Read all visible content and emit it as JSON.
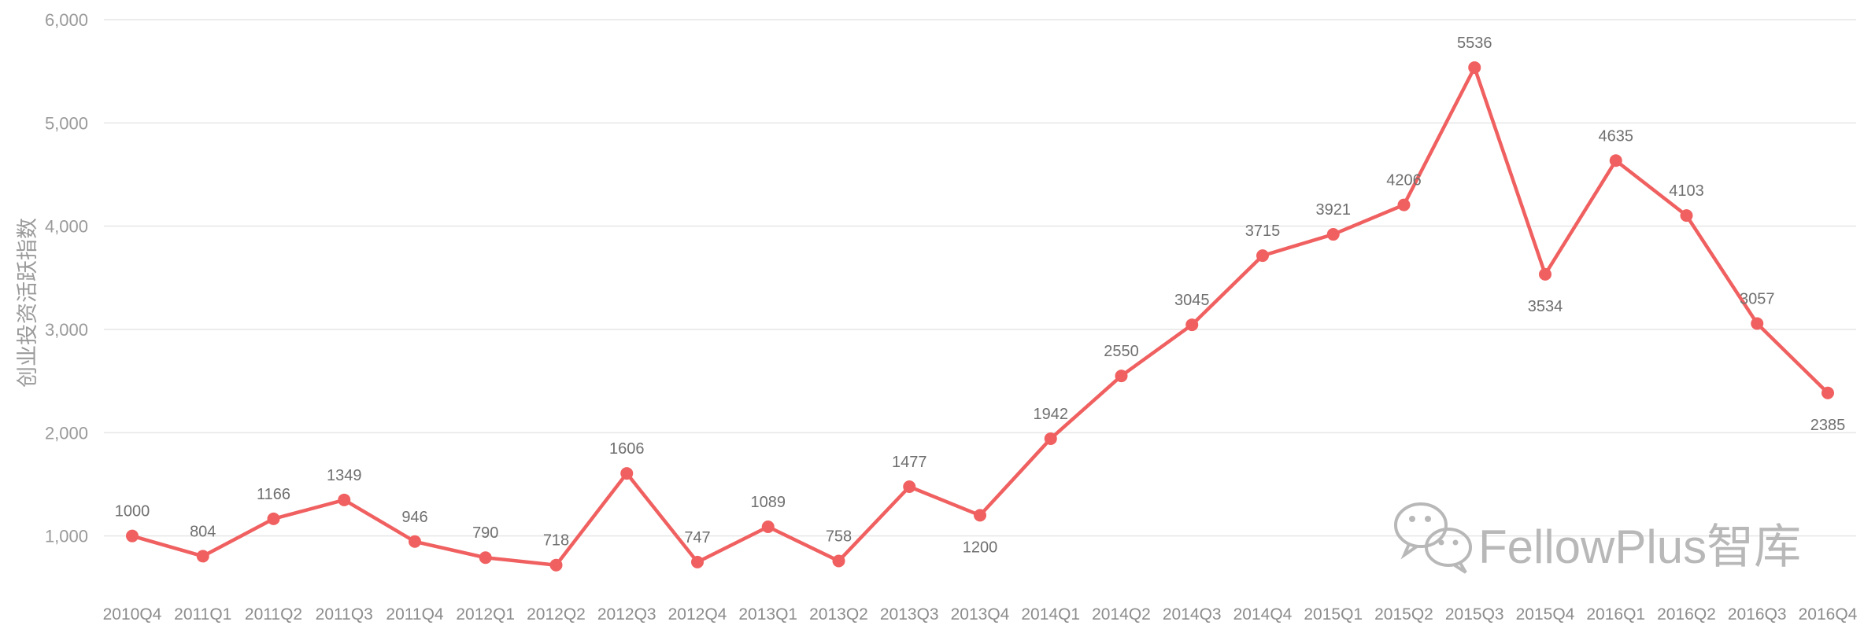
{
  "chart_data": {
    "type": "line",
    "title": "",
    "xlabel": "",
    "ylabel": "创业投资活跃指数",
    "ylim": [
      0,
      6000
    ],
    "yticks": [
      "1,000",
      "2,000",
      "3,000",
      "4,000",
      "5,000",
      "6,000"
    ],
    "grid": true,
    "legend": "none",
    "color": "#f06060",
    "categories": [
      "2010Q4",
      "2011Q1",
      "2011Q2",
      "2011Q3",
      "2011Q4",
      "2012Q1",
      "2012Q2",
      "2012Q3",
      "2012Q4",
      "2013Q1",
      "2013Q2",
      "2013Q3",
      "2013Q4",
      "2014Q1",
      "2014Q2",
      "2014Q3",
      "2014Q4",
      "2015Q1",
      "2015Q2",
      "2015Q3",
      "2015Q4",
      "2016Q1",
      "2016Q2",
      "2016Q3",
      "2016Q4"
    ],
    "values": [
      1000,
      804,
      1166,
      1349,
      946,
      790,
      718,
      1606,
      747,
      1089,
      758,
      1477,
      1200,
      1942,
      2550,
      3045,
      3715,
      3921,
      4206,
      5536,
      3534,
      4635,
      4103,
      3057,
      2385
    ],
    "label_positions": [
      "above",
      "above",
      "above",
      "above",
      "above",
      "above",
      "above",
      "above",
      "above",
      "above",
      "above",
      "above",
      "below",
      "above",
      "above",
      "above",
      "above",
      "above",
      "above",
      "above",
      "below",
      "above",
      "above",
      "above",
      "below"
    ]
  },
  "watermark": {
    "text": "FellowPlus智库",
    "icon": "wechat-icon"
  }
}
